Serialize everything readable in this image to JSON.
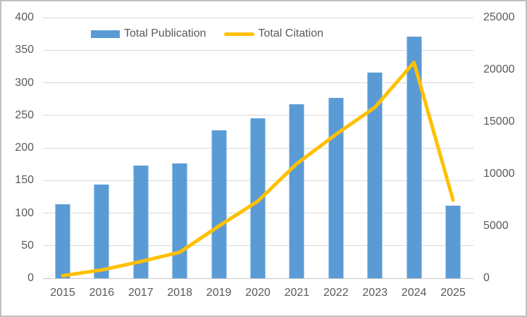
{
  "chart_data": {
    "type": "combo",
    "categories": [
      "2015",
      "2016",
      "2017",
      "2018",
      "2019",
      "2020",
      "2021",
      "2022",
      "2023",
      "2024",
      "2025"
    ],
    "series": [
      {
        "name": "Total Publication",
        "type": "bar",
        "axis": "left",
        "color": "#5B9BD5",
        "values": [
          113,
          144,
          173,
          176,
          227,
          245,
          267,
          277,
          316,
          371,
          111
        ]
      },
      {
        "name": "Total Citation",
        "type": "line",
        "axis": "right",
        "color": "#FFC000",
        "values": [
          250,
          800,
          1600,
          2500,
          5000,
          7400,
          11000,
          13800,
          16400,
          20700,
          7500
        ]
      }
    ],
    "left_axis": {
      "min": 0,
      "max": 400,
      "step": 50,
      "ticks": [
        "400",
        "350",
        "300",
        "250",
        "200",
        "150",
        "100",
        "50",
        "0"
      ]
    },
    "right_axis": {
      "min": 0,
      "max": 25000,
      "step": 5000,
      "ticks": [
        "25000",
        "20000",
        "15000",
        "10000",
        "5000",
        "0"
      ]
    },
    "legend_position": "top",
    "grid": "horizontal",
    "title": "",
    "xlabel": "",
    "ylabel": ""
  },
  "colors": {
    "bar": "#5B9BD5",
    "bar_edge": "#A9CDED",
    "line": "#FFC000",
    "grid": "#D9D9D9",
    "axis_text": "#595959",
    "background": "#FFFFFF",
    "frame_border": "#BFBFBF"
  }
}
